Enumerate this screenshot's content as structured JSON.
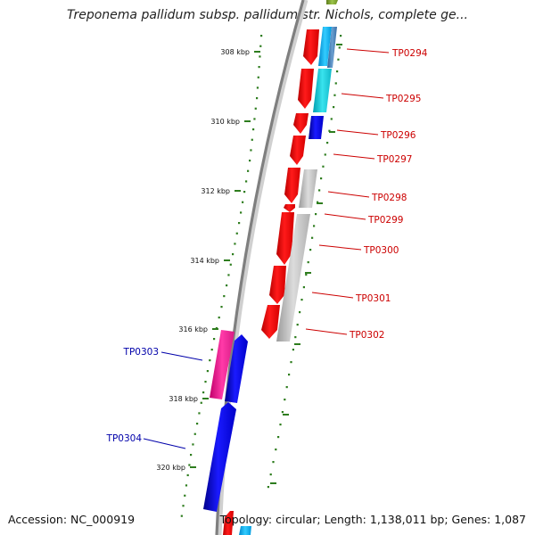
{
  "title": "Treponema pallidum subsp. pallidum str. Nichols, complete ge...",
  "footer": {
    "accession": "Accession: NC_000919",
    "topology": "Topology: circular; Length: 1,138,011 bp; Genes: 1,087"
  },
  "colors": {
    "backbone": "#8a8a8a",
    "tick": "#2e7d1e",
    "forward_label": "#cc0000",
    "reverse_label": "#0000aa"
  },
  "ticks": [
    "308 kbp",
    "310 kbp",
    "312 kbp",
    "314 kbp",
    "316 kbp",
    "318 kbp",
    "320 kbp"
  ],
  "genes": [
    {
      "id": "TP0294",
      "strand": "forward"
    },
    {
      "id": "TP0295",
      "strand": "forward"
    },
    {
      "id": "TP0296",
      "strand": "forward"
    },
    {
      "id": "TP0297",
      "strand": "forward"
    },
    {
      "id": "TP0298",
      "strand": "forward"
    },
    {
      "id": "TP0299",
      "strand": "forward"
    },
    {
      "id": "TP0300",
      "strand": "forward"
    },
    {
      "id": "TP0301",
      "strand": "forward"
    },
    {
      "id": "TP0302",
      "strand": "forward"
    },
    {
      "id": "TP0303",
      "strand": "reverse"
    },
    {
      "id": "TP0304",
      "strand": "reverse"
    }
  ]
}
